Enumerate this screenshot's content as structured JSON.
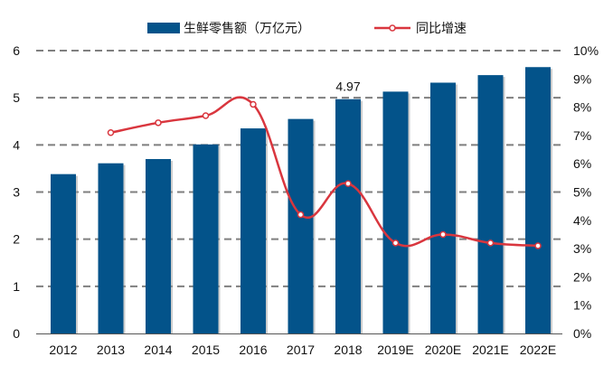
{
  "chart_data": {
    "type": "bar",
    "title": "",
    "categories": [
      "2012",
      "2013",
      "2014",
      "2015",
      "2016",
      "2017",
      "2018",
      "2019E",
      "2020E",
      "2021E",
      "2022E"
    ],
    "series": [
      {
        "name": "生鲜零售额（万亿元）",
        "type": "bar",
        "axis": "left",
        "color": "#03538A",
        "values": [
          3.38,
          3.61,
          3.7,
          4.01,
          4.35,
          4.55,
          4.97,
          5.13,
          5.32,
          5.48,
          5.65
        ]
      },
      {
        "name": "同比增速",
        "type": "line",
        "axis": "right",
        "color": "#D9363E",
        "smooth": true,
        "values": [
          null,
          7.1,
          7.45,
          7.7,
          8.1,
          4.2,
          5.3,
          3.2,
          3.5,
          3.2,
          3.1
        ]
      }
    ],
    "data_labels": [
      {
        "category": "2018",
        "text": "4.97"
      }
    ],
    "left_axis": {
      "ylim": [
        0,
        6
      ],
      "ticks": [
        "0",
        "1",
        "2",
        "3",
        "4",
        "5",
        "6"
      ]
    },
    "right_axis": {
      "ylim": [
        0,
        10
      ],
      "ticks": [
        "0%",
        "1%",
        "2%",
        "3%",
        "4%",
        "5%",
        "6%",
        "7%",
        "8%",
        "9%",
        "10%"
      ]
    },
    "grid": "dashed horizontal",
    "legend": "top"
  }
}
